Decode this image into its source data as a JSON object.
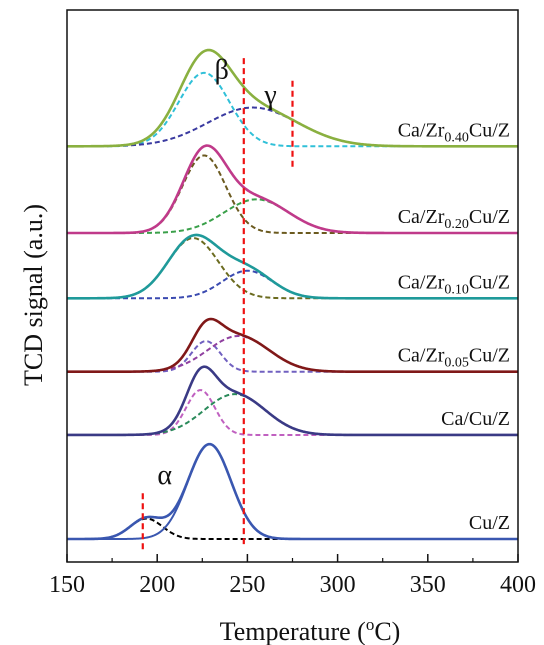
{
  "chart_data": {
    "type": "line",
    "xlabel": "Temperature (",
    "xlabel_sup": "o",
    "xlabel_end": "C)",
    "ylabel": "TCD signal (a.u.)",
    "xlim": [
      150,
      400
    ],
    "x_ticks": [
      "150",
      "200",
      "250",
      "300",
      "350",
      "400"
    ],
    "x_tick_values": [
      150,
      200,
      250,
      300,
      350,
      400
    ],
    "grid": false,
    "series": [
      {
        "name": "Cu/Z",
        "base": "Cu/Z",
        "sub": "",
        "tail": "",
        "offset": 0.0,
        "color": "#3a57b0",
        "components": [
          {
            "center": 194,
            "height": 0.2,
            "sigma": 9,
            "color": "#000000",
            "dashed": true
          },
          {
            "center": 229,
            "height": 0.93,
            "sigma": 12,
            "color": "#3a57b0",
            "dashed": false
          }
        ]
      },
      {
        "name": "Ca/Cu/Z",
        "base": "Ca/Cu/Z",
        "sub": "",
        "tail": "",
        "offset": 1.02,
        "color": "#3a3a85",
        "components": [
          {
            "center": 224,
            "height": 0.44,
            "sigma": 8,
            "color": "#c060c0",
            "dashed": true
          },
          {
            "center": 243,
            "height": 0.4,
            "sigma": 17,
            "color": "#2a8a5a",
            "dashed": true
          }
        ]
      },
      {
        "name": "Ca/Zr0.05Cu/Z",
        "base": "Ca/Zr",
        "sub": "0.05",
        "tail": "Cu/Z",
        "offset": 1.64,
        "color": "#801818",
        "components": [
          {
            "center": 227,
            "height": 0.3,
            "sigma": 8,
            "color": "#7060c0",
            "dashed": true
          },
          {
            "center": 245,
            "height": 0.35,
            "sigma": 17,
            "color": "#9040a0",
            "dashed": true
          }
        ]
      },
      {
        "name": "Ca/Zr0.10Cu/Z",
        "base": "Ca/Zr",
        "sub": "0.10",
        "tail": "Cu/Z",
        "offset": 2.36,
        "color": "#1f9a9a",
        "components": [
          {
            "center": 220,
            "height": 0.59,
            "sigma": 14,
            "color": "#6b6b1f",
            "dashed": true
          },
          {
            "center": 250,
            "height": 0.27,
            "sigma": 14,
            "color": "#3a4ab0",
            "dashed": true
          }
        ]
      },
      {
        "name": "Ca/Zr0.20Cu/Z",
        "base": "Ca/Zr",
        "sub": "0.20",
        "tail": "Cu/Z",
        "offset": 3.0,
        "color": "#c03a8a",
        "components": [
          {
            "center": 226,
            "height": 0.76,
            "sigma": 12,
            "color": "#6b5a1f",
            "dashed": true
          },
          {
            "center": 255,
            "height": 0.33,
            "sigma": 18,
            "color": "#3aa04a",
            "dashed": true
          }
        ]
      },
      {
        "name": "Ca/Zr0.40Cu/Z",
        "base": "Ca/Zr",
        "sub": "0.40",
        "tail": "Cu/Z",
        "offset": 3.85,
        "color": "#8ab040",
        "components": [
          {
            "center": 226,
            "height": 0.72,
            "sigma": 14,
            "color": "#30c0d8",
            "dashed": true
          },
          {
            "center": 253,
            "height": 0.38,
            "sigma": 25,
            "color": "#3a3aa0",
            "dashed": true
          }
        ]
      }
    ],
    "annotations": [
      {
        "symbol": "α",
        "x": 192,
        "line_bottom": -0.1,
        "line_top": 0.48
      },
      {
        "symbol": "β",
        "x": 248,
        "line_bottom": -0.05,
        "line_top": 4.75
      },
      {
        "symbol": "γ",
        "x": 275,
        "line_bottom": 3.65,
        "line_top": 4.5
      }
    ]
  }
}
